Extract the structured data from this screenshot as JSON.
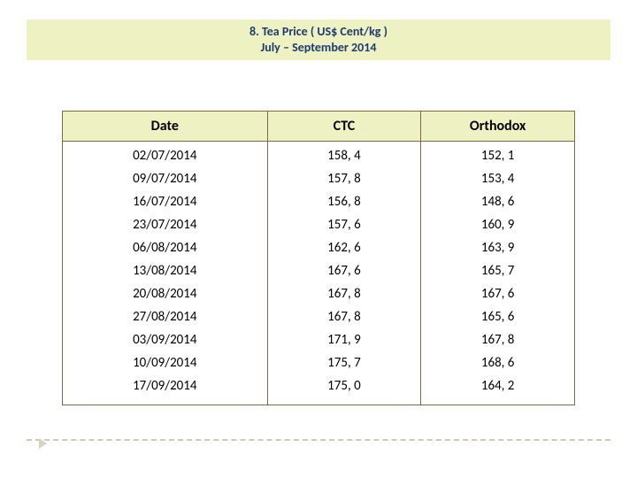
{
  "title": {
    "line1": "8. Tea Price ( US$ Cent/kg )",
    "line2": "July – September 2014",
    "text_color": "#1f3a6e",
    "bg_color": "#eef2c2",
    "font_size": 14
  },
  "table": {
    "type": "table",
    "header_bg": "#eef2c2",
    "border_color": "#7a6a4a",
    "font_size": 15,
    "header_font_size": 16,
    "columns": [
      "Date",
      "CTC",
      "Orthodox"
    ],
    "col_widths_pct": [
      40,
      30,
      30
    ],
    "rows": [
      [
        "02/07/2014",
        "158, 4",
        "152, 1"
      ],
      [
        "09/07/2014",
        "157, 8",
        "153, 4"
      ],
      [
        "16/07/2014",
        "156, 8",
        "148, 6"
      ],
      [
        "23/07/2014",
        "157, 6",
        "160, 9"
      ],
      [
        "06/08/2014",
        "162, 6",
        "163, 9"
      ],
      [
        "13/08/2014",
        "167, 6",
        "165, 7"
      ],
      [
        "20/08/2014",
        "167, 8",
        "167, 6"
      ],
      [
        "27/08/2014",
        "167, 8",
        "165, 6"
      ],
      [
        "03/09/2014",
        "171, 9",
        "167, 8"
      ],
      [
        "10/09/2014",
        "175, 7",
        "168, 6"
      ],
      [
        "17/09/2014",
        "175, 0",
        "164, 2"
      ]
    ]
  },
  "footer": {
    "divider_color": "#cfcab6",
    "marker_color": "#d9d4bc"
  }
}
